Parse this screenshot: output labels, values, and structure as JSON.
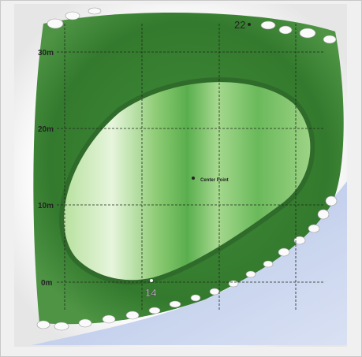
{
  "scale_labels": [
    "30m",
    "20m",
    "10m",
    "0m"
  ],
  "markers": [
    {
      "label": "22"
    },
    {
      "label": "14"
    }
  ],
  "center_label": "Center Point"
}
